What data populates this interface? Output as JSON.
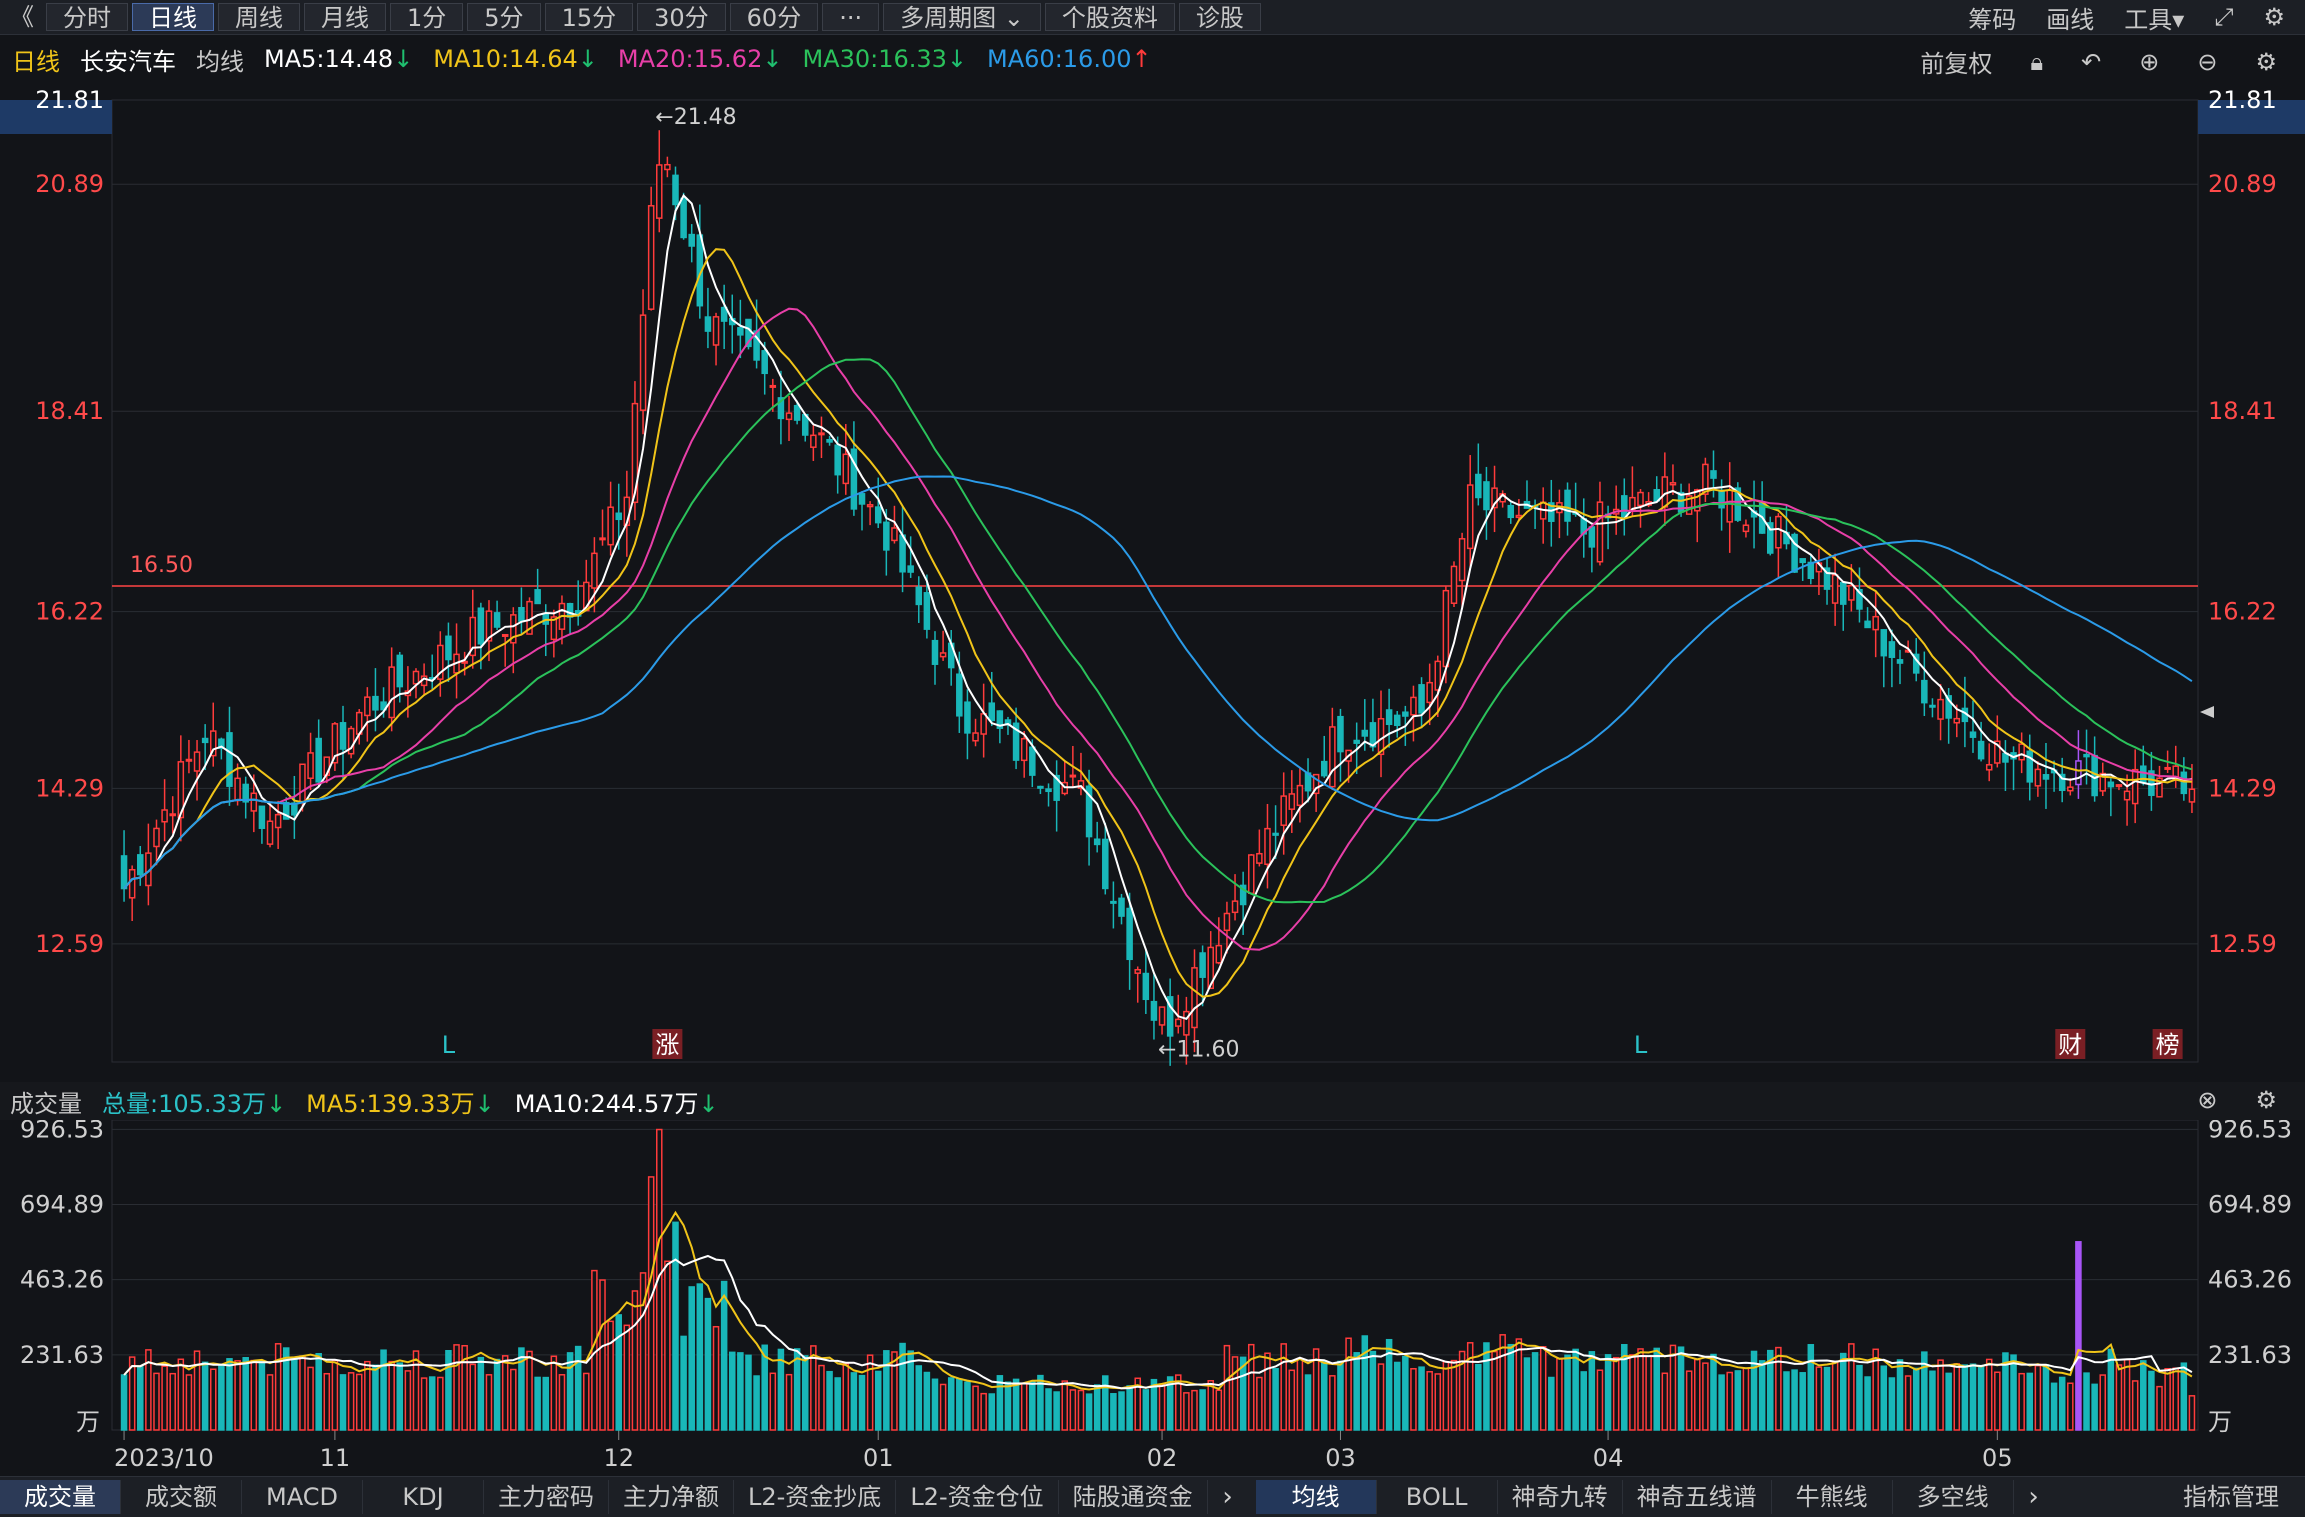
{
  "toolbar": {
    "back": "《",
    "tabs": [
      "分时",
      "日线",
      "周线",
      "月线",
      "1分",
      "5分",
      "15分",
      "30分",
      "60分"
    ],
    "active": "日线",
    "more": "···",
    "multi_period": "多周期图 ⌄",
    "stock_info": "个股资料",
    "diagnose": "诊股",
    "right": [
      "筹码",
      "画线",
      "工具▾"
    ]
  },
  "main_legend": {
    "period": "日线",
    "stock": "长安汽车",
    "ma_label": "均线",
    "ma": [
      {
        "text": "MA5:14.48",
        "arrow": "↓",
        "color": "#ffffff",
        "arrow_color": "#1fbf6f"
      },
      {
        "text": "MA10:14.64",
        "arrow": "↓",
        "color": "#f0c419",
        "arrow_color": "#1fbf6f"
      },
      {
        "text": "MA20:15.62",
        "arrow": "↓",
        "color": "#e83fa8",
        "arrow_color": "#1fbf6f"
      },
      {
        "text": "MA30:16.33",
        "arrow": "↓",
        "color": "#2bc25b",
        "arrow_color": "#1fbf6f"
      },
      {
        "text": "MA60:16.00",
        "arrow": "↑",
        "color": "#2b9be8",
        "arrow_color": "#ff3b3b"
      }
    ],
    "adjust": "前复权"
  },
  "price_axis": {
    "labels": [
      "21.81",
      "20.89",
      "18.41",
      "16.22",
      "14.29",
      "12.59"
    ],
    "values": [
      21.81,
      20.89,
      18.41,
      16.22,
      14.29,
      12.59
    ]
  },
  "annotations": {
    "high": "←21.48",
    "low": "←11.60",
    "hline": "16.50",
    "markers": [
      {
        "text": "L",
        "type": "plain",
        "idx": 40
      },
      {
        "text": "涨",
        "type": "box",
        "idx": 67
      },
      {
        "text": "L",
        "type": "plain",
        "idx": 187
      },
      {
        "text": "财",
        "type": "box",
        "idx": 240
      },
      {
        "text": "榜",
        "type": "box",
        "idx": 252
      }
    ]
  },
  "volume_legend": {
    "label": "成交量",
    "items": [
      {
        "text": "总量:105.33万",
        "arrow": "↓",
        "color": "#2bc2c8"
      },
      {
        "text": "MA5:139.33万",
        "arrow": "↓",
        "color": "#f0c419"
      },
      {
        "text": "MA10:244.57万",
        "arrow": "↓",
        "color": "#ffffff"
      }
    ]
  },
  "volume_axis": {
    "labels": [
      "926.53",
      "694.89",
      "463.26",
      "231.63",
      "万"
    ],
    "values": [
      926.53,
      694.89,
      463.26,
      231.63,
      0
    ]
  },
  "date_axis": [
    {
      "label": "2023/10",
      "idx": 0
    },
    {
      "label": "11",
      "idx": 26
    },
    {
      "label": "12",
      "idx": 61
    },
    {
      "label": "01",
      "idx": 93
    },
    {
      "label": "02",
      "idx": 128
    },
    {
      "label": "03",
      "idx": 150
    },
    {
      "label": "04",
      "idx": 183
    },
    {
      "label": "05",
      "idx": 231
    }
  ],
  "bottom_tabs_left": [
    "成交量",
    "成交额",
    "MACD",
    "KDJ",
    "主力密码",
    "主力净额",
    "L2-资金抄底",
    "L2-资金仓位",
    "陆股通资金"
  ],
  "bottom_tabs_right": [
    "均线",
    "BOLL",
    "神奇九转",
    "神奇五线谱",
    "牛熊线",
    "多空线"
  ],
  "bottom_manage": "指标管理",
  "colors": {
    "up": "#ff3b3b",
    "down": "#19b7b9",
    "ma5": "#ffffff",
    "ma10": "#f0c419",
    "ma20": "#e83fa8",
    "ma30": "#2bc25b",
    "ma60": "#2b9be8",
    "hline": "#ff4444",
    "special": "#a855f7"
  },
  "chart_data": {
    "type": "candlestick",
    "title": "长安汽车",
    "ylim": [
      11.3,
      21.81
    ],
    "volume_ylim": [
      0,
      940
    ],
    "key_points": [
      {
        "idx": 0,
        "close": 13.2
      },
      {
        "idx": 10,
        "close": 14.9
      },
      {
        "idx": 18,
        "close": 13.9
      },
      {
        "idx": 30,
        "close": 15.2
      },
      {
        "idx": 44,
        "close": 16.0
      },
      {
        "idx": 56,
        "close": 16.4
      },
      {
        "idx": 62,
        "close": 17.5
      },
      {
        "idx": 66,
        "close": 21.48
      },
      {
        "idx": 72,
        "close": 19.4
      },
      {
        "idx": 85,
        "close": 18.2
      },
      {
        "idx": 94,
        "close": 17.1
      },
      {
        "idx": 103,
        "close": 15.2
      },
      {
        "idx": 118,
        "close": 14.2
      },
      {
        "idx": 128,
        "close": 11.6
      },
      {
        "idx": 140,
        "close": 13.6
      },
      {
        "idx": 150,
        "close": 14.9
      },
      {
        "idx": 160,
        "close": 15.1
      },
      {
        "idx": 166,
        "close": 17.4
      },
      {
        "idx": 180,
        "close": 17.1
      },
      {
        "idx": 190,
        "close": 17.5
      },
      {
        "idx": 196,
        "close": 17.6
      },
      {
        "idx": 210,
        "close": 16.6
      },
      {
        "idx": 220,
        "close": 15.6
      },
      {
        "idx": 232,
        "close": 14.6
      },
      {
        "idx": 255,
        "close": 14.28
      }
    ],
    "n_bars": 256,
    "special_bar_idx": 241,
    "last_volume": 105.33
  }
}
